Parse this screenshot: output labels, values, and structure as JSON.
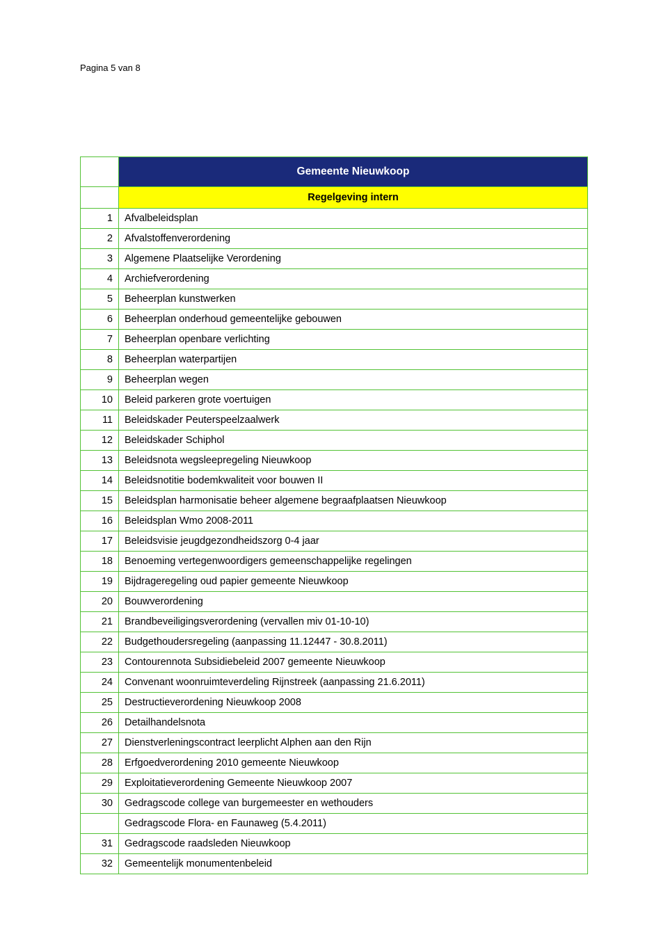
{
  "page_header": "Pagina 5 van 8",
  "table": {
    "border_color": "#52c234",
    "title": {
      "text": "Gemeente Nieuwkoop",
      "bg": "#1a2a7a",
      "fg": "#ffffff"
    },
    "subtitle": {
      "text": "Regelgeving intern",
      "bg": "#ffff00",
      "fg": "#000000"
    },
    "rows": [
      {
        "n": "1",
        "label": "Afvalbeleidsplan"
      },
      {
        "n": "2",
        "label": "Afvalstoffenverordening"
      },
      {
        "n": "3",
        "label": "Algemene Plaatselijke Verordening"
      },
      {
        "n": "4",
        "label": "Archiefverordening"
      },
      {
        "n": "5",
        "label": "Beheerplan kunstwerken"
      },
      {
        "n": "6",
        "label": "Beheerplan onderhoud gemeentelijke gebouwen"
      },
      {
        "n": "7",
        "label": "Beheerplan openbare verlichting"
      },
      {
        "n": "8",
        "label": "Beheerplan waterpartijen"
      },
      {
        "n": "9",
        "label": "Beheerplan wegen"
      },
      {
        "n": "10",
        "label": "Beleid parkeren grote voertuigen"
      },
      {
        "n": "11",
        "label": "Beleidskader Peuterspeelzaalwerk"
      },
      {
        "n": "12",
        "label": "Beleidskader Schiphol"
      },
      {
        "n": "13",
        "label": "Beleidsnota wegsleepregeling Nieuwkoop"
      },
      {
        "n": "14",
        "label": "Beleidsnotitie bodemkwaliteit voor bouwen II"
      },
      {
        "n": "15",
        "label": "Beleidsplan harmonisatie beheer algemene begraafplaatsen Nieuwkoop"
      },
      {
        "n": "16",
        "label": "Beleidsplan Wmo 2008-2011"
      },
      {
        "n": "17",
        "label": "Beleidsvisie jeugdgezondheidszorg 0-4 jaar"
      },
      {
        "n": "18",
        "label": "Benoeming vertegenwoordigers gemeenschappelijke regelingen"
      },
      {
        "n": "19",
        "label": "Bijdrageregeling oud papier gemeente Nieuwkoop"
      },
      {
        "n": "20",
        "label": "Bouwverordening"
      },
      {
        "n": "21",
        "label": "Brandbeveiligingsverordening (vervallen miv 01-10-10)"
      },
      {
        "n": "22",
        "label": "Budgethoudersregeling (aanpassing 11.12447 - 30.8.2011)"
      },
      {
        "n": "23",
        "label": "Contourennota Subsidiebeleid 2007 gemeente Nieuwkoop"
      },
      {
        "n": "24",
        "label": "Convenant woonruimteverdeling Rijnstreek (aanpassing 21.6.2011)"
      },
      {
        "n": "25",
        "label": "Destructieverordening Nieuwkoop 2008"
      },
      {
        "n": "26",
        "label": "Detailhandelsnota"
      },
      {
        "n": "27",
        "label": "Dienstverleningscontract leerplicht Alphen aan den Rijn"
      },
      {
        "n": "28",
        "label": "Erfgoedverordening 2010 gemeente Nieuwkoop"
      },
      {
        "n": "29",
        "label": "Exploitatieverordening Gemeente Nieuwkoop 2007"
      },
      {
        "n": "30",
        "label": "Gedragscode college van burgemeester en wethouders"
      },
      {
        "n": "",
        "label": "Gedragscode Flora- en Faunaweg (5.4.2011)"
      },
      {
        "n": "31",
        "label": "Gedragscode raadsleden Nieuwkoop"
      },
      {
        "n": "32",
        "label": "Gemeentelijk monumentenbeleid"
      }
    ]
  }
}
